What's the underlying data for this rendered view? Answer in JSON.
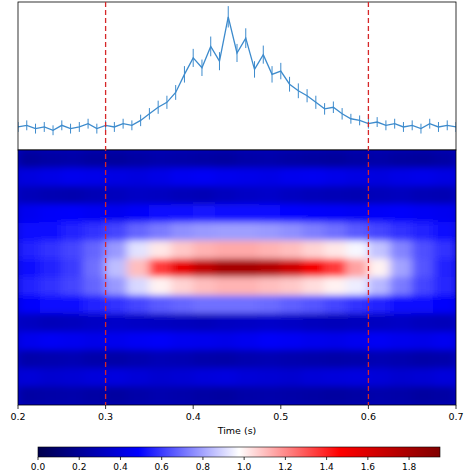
{
  "chart_data": [
    {
      "type": "line",
      "x": [
        0.2,
        0.21,
        0.22,
        0.23,
        0.24,
        0.25,
        0.26,
        0.27,
        0.28,
        0.29,
        0.3,
        0.31,
        0.32,
        0.33,
        0.34,
        0.35,
        0.36,
        0.37,
        0.38,
        0.39,
        0.4,
        0.41,
        0.42,
        0.43,
        0.44,
        0.45,
        0.46,
        0.47,
        0.48,
        0.49,
        0.5,
        0.51,
        0.52,
        0.53,
        0.54,
        0.55,
        0.56,
        0.57,
        0.58,
        0.59,
        0.6,
        0.61,
        0.62,
        0.63,
        0.64,
        0.65,
        0.66,
        0.67,
        0.68,
        0.69,
        0.7
      ],
      "values": [
        1.4,
        1.5,
        1.3,
        1.4,
        1.2,
        1.5,
        1.3,
        1.4,
        1.6,
        1.3,
        1.5,
        1.4,
        1.6,
        1.5,
        1.8,
        2.2,
        2.6,
        2.9,
        3.5,
        4.6,
        5.6,
        5.0,
        6.3,
        5.4,
        8.1,
        5.9,
        6.8,
        4.9,
        5.8,
        4.6,
        4.8,
        4.0,
        3.6,
        3.3,
        2.9,
        2.5,
        2.6,
        2.2,
        1.9,
        1.8,
        1.6,
        1.7,
        1.5,
        1.6,
        1.4,
        1.5,
        1.3,
        1.6,
        1.4,
        1.5,
        1.4
      ],
      "errors": [
        0.3,
        0.3,
        0.3,
        0.3,
        0.3,
        0.3,
        0.3,
        0.3,
        0.3,
        0.3,
        0.3,
        0.3,
        0.3,
        0.3,
        0.35,
        0.35,
        0.4,
        0.4,
        0.45,
        0.5,
        0.55,
        0.5,
        0.6,
        0.55,
        0.65,
        0.55,
        0.6,
        0.5,
        0.55,
        0.5,
        0.5,
        0.45,
        0.45,
        0.4,
        0.4,
        0.35,
        0.35,
        0.35,
        0.3,
        0.3,
        0.3,
        0.3,
        0.3,
        0.3,
        0.3,
        0.3,
        0.3,
        0.3,
        0.3,
        0.3,
        0.3
      ],
      "xlim": [
        0.2,
        0.7
      ],
      "ylim": [
        0,
        9
      ],
      "tick_labels": false,
      "color": "#3d8bcd",
      "vlines": [
        0.3,
        0.6
      ]
    },
    {
      "type": "heatmap",
      "x_label": "Time (s)",
      "x": [
        0.2125,
        0.2375,
        0.2625,
        0.2875,
        0.3125,
        0.3375,
        0.3625,
        0.3875,
        0.4125,
        0.4375,
        0.4625,
        0.4875,
        0.5125,
        0.5375,
        0.5625,
        0.5875,
        0.6125,
        0.6375,
        0.6625,
        0.6875
      ],
      "cells": [
        [
          0.22,
          0.24,
          0.25,
          0.23,
          0.22,
          0.24,
          0.26,
          0.25,
          0.24,
          0.23,
          0.25,
          0.26,
          0.24,
          0.23,
          0.22,
          0.24,
          0.25,
          0.23,
          0.22,
          0.24
        ],
        [
          0.4,
          0.42,
          0.44,
          0.43,
          0.41,
          0.4,
          0.42,
          0.45,
          0.46,
          0.44,
          0.43,
          0.42,
          0.44,
          0.45,
          0.43,
          0.41,
          0.4,
          0.42,
          0.43,
          0.41
        ],
        [
          0.3,
          0.28,
          0.27,
          0.29,
          0.31,
          0.33,
          0.32,
          0.3,
          0.29,
          0.31,
          0.33,
          0.34,
          0.32,
          0.3,
          0.29,
          0.28,
          0.3,
          0.31,
          0.29,
          0.28
        ],
        [
          0.45,
          0.47,
          0.48,
          0.46,
          0.45,
          0.47,
          0.5,
          0.52,
          0.53,
          0.52,
          0.51,
          0.5,
          0.49,
          0.48,
          0.47,
          0.46,
          0.47,
          0.48,
          0.46,
          0.45
        ],
        [
          0.5,
          0.52,
          0.55,
          0.58,
          0.62,
          0.68,
          0.72,
          0.76,
          0.78,
          0.79,
          0.79,
          0.78,
          0.76,
          0.73,
          0.7,
          0.66,
          0.62,
          0.58,
          0.55,
          0.52
        ],
        [
          0.55,
          0.58,
          0.62,
          0.68,
          0.78,
          0.92,
          1.02,
          1.08,
          1.12,
          1.14,
          1.14,
          1.12,
          1.1,
          1.06,
          1.02,
          0.96,
          0.86,
          0.74,
          0.64,
          0.58
        ],
        [
          0.5,
          0.55,
          0.6,
          0.7,
          0.85,
          1.1,
          1.35,
          1.55,
          1.7,
          1.8,
          1.8,
          1.75,
          1.65,
          1.5,
          1.35,
          1.15,
          1.0,
          0.8,
          0.65,
          0.55
        ],
        [
          0.55,
          0.58,
          0.62,
          0.68,
          0.78,
          0.9,
          1.0,
          1.06,
          1.1,
          1.12,
          1.12,
          1.1,
          1.08,
          1.04,
          1.0,
          0.94,
          0.84,
          0.72,
          0.62,
          0.56
        ],
        [
          0.48,
          0.5,
          0.52,
          0.55,
          0.58,
          0.62,
          0.66,
          0.68,
          0.7,
          0.7,
          0.7,
          0.69,
          0.67,
          0.65,
          0.62,
          0.58,
          0.55,
          0.52,
          0.5,
          0.48
        ],
        [
          0.32,
          0.3,
          0.31,
          0.33,
          0.34,
          0.33,
          0.32,
          0.31,
          0.3,
          0.32,
          0.33,
          0.34,
          0.33,
          0.31,
          0.3,
          0.31,
          0.32,
          0.33,
          0.31,
          0.3
        ],
        [
          0.44,
          0.46,
          0.45,
          0.43,
          0.44,
          0.46,
          0.47,
          0.45,
          0.44,
          0.43,
          0.45,
          0.47,
          0.46,
          0.44,
          0.43,
          0.45,
          0.46,
          0.44,
          0.43,
          0.45
        ],
        [
          0.26,
          0.27,
          0.28,
          0.26,
          0.25,
          0.27,
          0.29,
          0.28,
          0.26,
          0.25,
          0.27,
          0.28,
          0.27,
          0.26,
          0.25,
          0.26,
          0.28,
          0.27,
          0.25,
          0.26
        ],
        [
          0.38,
          0.36,
          0.37,
          0.39,
          0.4,
          0.38,
          0.36,
          0.37,
          0.39,
          0.4,
          0.38,
          0.37,
          0.36,
          0.38,
          0.39,
          0.4,
          0.38,
          0.36,
          0.37,
          0.39
        ],
        [
          0.24,
          0.25,
          0.26,
          0.24,
          0.23,
          0.25,
          0.27,
          0.26,
          0.24,
          0.23,
          0.25,
          0.26,
          0.25,
          0.24,
          0.23,
          0.24,
          0.26,
          0.25,
          0.23,
          0.24
        ]
      ],
      "xlim": [
        0.2,
        0.7
      ],
      "xticks": [
        0.2,
        0.3,
        0.4,
        0.5,
        0.6,
        0.7
      ],
      "tick_labels": "x",
      "colorbar": {
        "range": [
          0,
          1.95
        ],
        "ticks": [
          {
            "value": 0,
            "label": "0.0"
          },
          0.2,
          0.4,
          0.6,
          0.8,
          {
            "value": 1,
            "label": "1.0"
          },
          1.2,
          1.4,
          1.6,
          1.8
        ]
      }
    }
  ]
}
